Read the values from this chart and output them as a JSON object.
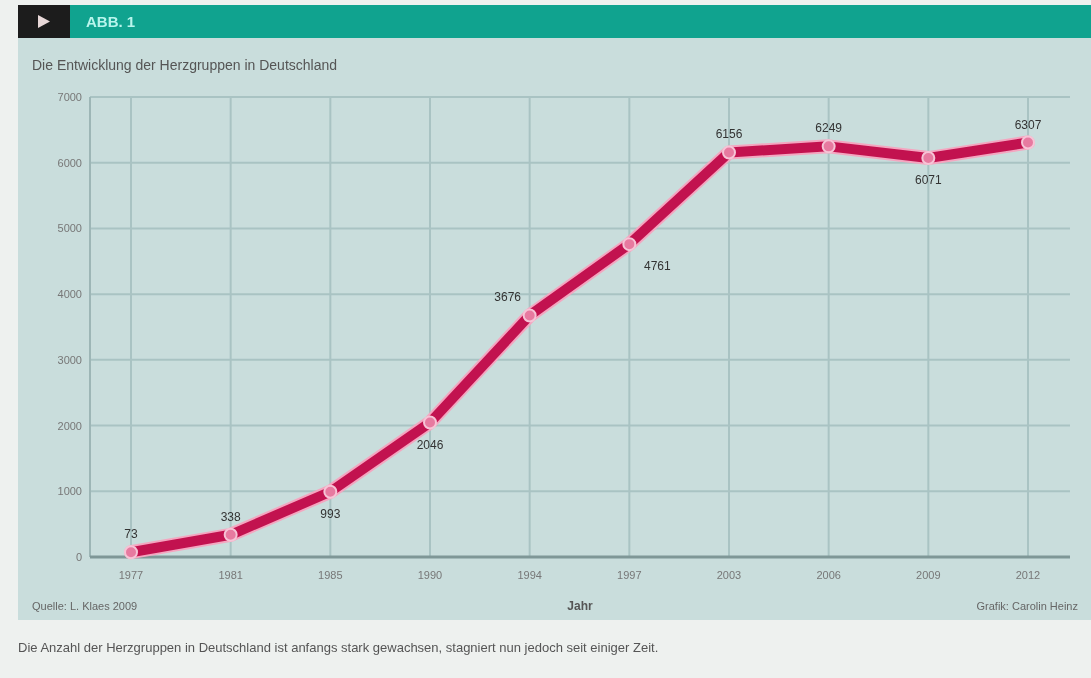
{
  "chart_data": {
    "type": "line",
    "title": "Die Entwicklung der Herzgruppen in Deutschland",
    "subtitle": "ABB. 1",
    "xlabel": "Jahr",
    "categories": [
      "1977",
      "1981",
      "1985",
      "1990",
      "1994",
      "1997",
      "2003",
      "2006",
      "2009",
      "2012"
    ],
    "series": [
      {
        "color": "#c2124f",
        "values": [
          73,
          338,
          993,
          2046,
          3676,
          4761,
          6156,
          6249,
          6071,
          6307
        ]
      }
    ],
    "ylim": [
      0,
      7000
    ],
    "yticks": [
      0,
      1000,
      2000,
      3000,
      4000,
      5000,
      6000,
      7000
    ],
    "grid": true,
    "marker": "circle",
    "data_labels": true,
    "annotations": [
      "Quelle: L. Klaes 2009",
      "Grafik: Carolin Heinz",
      "Die Anzahl der Herzgruppen in Deutschland ist anfangs stark gewachsen, stagniert nun jedoch seit einiger Zeit."
    ]
  }
}
